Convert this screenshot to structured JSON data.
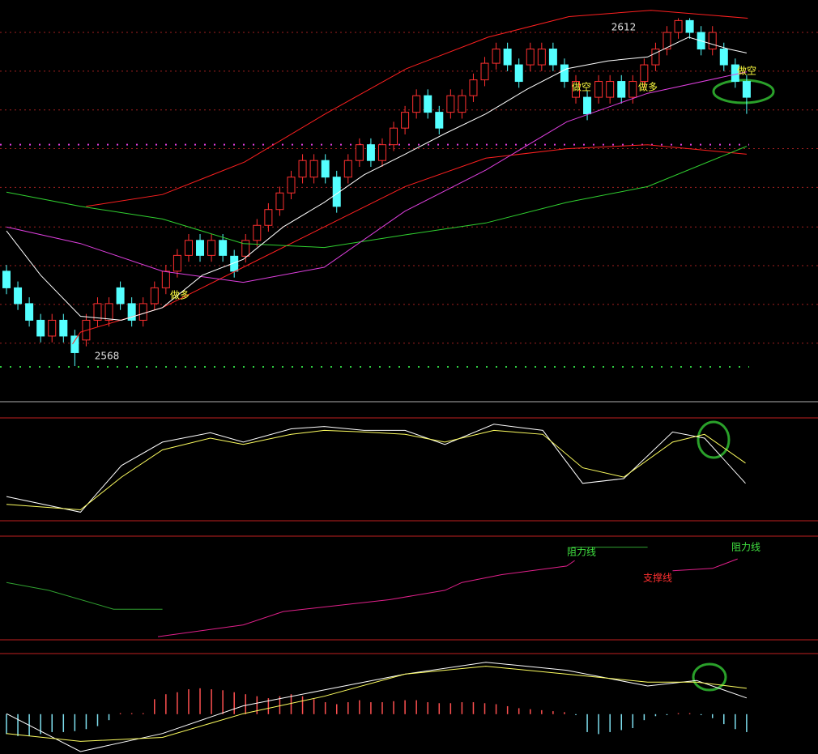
{
  "chart_data": [
    {
      "type": "candlestick",
      "open": [
        2580.0,
        2577.9,
        2575.9,
        2573.8,
        2571.8,
        2573.8,
        2571.8,
        2571.3,
        2573.8,
        2573.8,
        2577.9,
        2575.9,
        2573.8,
        2575.9,
        2577.9,
        2580.0,
        2582.0,
        2583.9,
        2582.0,
        2583.9,
        2581.9,
        2581.9,
        2583.9,
        2585.8,
        2587.8,
        2589.9,
        2591.9,
        2591.9,
        2594.0,
        2591.9,
        2591.9,
        2594.0,
        2596.0,
        2594.0,
        2596.0,
        2598.1,
        2600.1,
        2602.2,
        2600.1,
        2600.1,
        2600.1,
        2602.2,
        2604.2,
        2606.3,
        2608.1,
        2606.1,
        2606.1,
        2606.1,
        2608.1,
        2606.1,
        2602.0,
        2602.0,
        2602.0,
        2602.0,
        2604.0,
        2602.0,
        2604.0,
        2606.1,
        2608.1,
        2610.2,
        2611.7,
        2610.2,
        2608.1,
        2608.1,
        2606.1,
        2604.0
      ],
      "close": [
        2577.9,
        2575.9,
        2573.8,
        2571.8,
        2573.8,
        2571.8,
        2569.7,
        2573.8,
        2575.9,
        2575.9,
        2575.9,
        2573.8,
        2575.9,
        2577.9,
        2580.0,
        2582.0,
        2583.9,
        2582.0,
        2583.9,
        2582.0,
        2580.0,
        2583.9,
        2585.8,
        2587.8,
        2589.9,
        2591.9,
        2594.0,
        2594.0,
        2591.9,
        2588.2,
        2594.0,
        2596.0,
        2594.0,
        2596.0,
        2598.1,
        2600.1,
        2602.2,
        2600.1,
        2598.1,
        2602.2,
        2602.2,
        2604.2,
        2606.3,
        2608.1,
        2606.1,
        2604.0,
        2608.1,
        2608.1,
        2606.1,
        2604.0,
        2604.0,
        2599.9,
        2604.0,
        2604.0,
        2602.0,
        2604.0,
        2606.1,
        2608.1,
        2610.2,
        2611.7,
        2610.2,
        2608.1,
        2610.2,
        2606.1,
        2604.0,
        2602.0
      ],
      "high": [
        2580.8,
        2578.7,
        2576.7,
        2574.6,
        2574.6,
        2574.6,
        2572.6,
        2574.6,
        2576.7,
        2576.7,
        2578.7,
        2576.7,
        2576.7,
        2578.7,
        2580.8,
        2582.8,
        2584.7,
        2584.7,
        2584.7,
        2584.7,
        2582.7,
        2584.7,
        2586.6,
        2588.6,
        2590.7,
        2592.7,
        2594.8,
        2594.8,
        2594.8,
        2592.7,
        2594.8,
        2596.8,
        2596.8,
        2596.8,
        2598.9,
        2600.9,
        2603.0,
        2603.0,
        2600.9,
        2603.0,
        2603.0,
        2605.0,
        2607.1,
        2608.9,
        2608.9,
        2606.9,
        2608.9,
        2608.9,
        2608.9,
        2606.9,
        2604.8,
        2602.8,
        2604.8,
        2604.8,
        2604.8,
        2604.8,
        2606.9,
        2608.9,
        2611.0,
        2612.0,
        2612.0,
        2611.0,
        2611.0,
        2608.9,
        2606.9,
        2604.8
      ],
      "low": [
        2577.1,
        2575.1,
        2573.0,
        2571.0,
        2571.0,
        2571.0,
        2568.0,
        2570.5,
        2573.0,
        2573.0,
        2575.1,
        2573.0,
        2573.0,
        2575.1,
        2577.1,
        2579.2,
        2581.2,
        2581.2,
        2581.2,
        2581.2,
        2579.2,
        2581.1,
        2583.1,
        2585.0,
        2587.0,
        2589.1,
        2591.1,
        2591.1,
        2591.1,
        2587.4,
        2591.1,
        2593.2,
        2593.2,
        2593.2,
        2595.2,
        2597.3,
        2599.3,
        2599.3,
        2597.3,
        2599.3,
        2599.3,
        2601.4,
        2603.4,
        2605.5,
        2605.3,
        2603.2,
        2605.3,
        2605.3,
        2605.3,
        2603.2,
        2601.2,
        2599.1,
        2601.2,
        2601.2,
        2601.2,
        2601.2,
        2603.2,
        2605.3,
        2607.3,
        2609.4,
        2609.4,
        2607.3,
        2607.3,
        2605.3,
        2603.2,
        2599.9
      ],
      "up_color": "#ff3030",
      "down_color": "#54ffff",
      "ylim": [
        2563.6,
        2614.3
      ],
      "yticks": [
        2610.2,
        2605.3,
        2600.4,
        2595.5,
        2590.6,
        2585.6,
        2580.7,
        2575.8,
        2570.9
      ],
      "grid": true,
      "grid_color": "#a02020",
      "levels": [
        {
          "value": 2596.0,
          "color": "#e040e0"
        },
        {
          "value": 2567.9,
          "color": "#2ecc40"
        }
      ],
      "series": [
        {
          "color": "#ff2020",
          "x": [
            7,
            13.7,
            20.9,
            28,
            35.1,
            42.3,
            49.4,
            56.6,
            65.1
          ],
          "values": [
            2588.2,
            2589.7,
            2593.8,
            2599.9,
            2605.6,
            2609.6,
            2612.2,
            2613.0,
            2612.0
          ]
        },
        {
          "color": "#ff2020",
          "x": [
            5.8,
            6.5,
            13.7,
            20.8,
            27.9,
            35,
            42.1,
            49.2,
            56.3,
            65
          ],
          "values": [
            2570.8,
            2572.3,
            2575.4,
            2580.5,
            2585.6,
            2590.7,
            2594.3,
            2595.5,
            2596.0,
            2594.8
          ]
        },
        {
          "color": "#30d030",
          "x": [
            0,
            6.5,
            13.7,
            20.8,
            27.9,
            35,
            42.1,
            49.2,
            56.3,
            65
          ],
          "values": [
            2590.0,
            2588.2,
            2586.6,
            2583.5,
            2583.0,
            2584.6,
            2586.1,
            2588.7,
            2590.7,
            2595.8
          ]
        },
        {
          "color": "#e040e0",
          "x": [
            0,
            6.5,
            13.7,
            20.8,
            27.9,
            35,
            42.1,
            49.2,
            56.3,
            65
          ],
          "values": [
            2585.6,
            2583.5,
            2580.0,
            2578.6,
            2580.5,
            2587.6,
            2592.8,
            2598.9,
            2602.5,
            2605.2
          ]
        },
        {
          "color": "#ffffff",
          "x": [
            0,
            3,
            6.5,
            10.1,
            13.7,
            17.2,
            20.8,
            24.3,
            27.9,
            31.4,
            35,
            38.5,
            42.1,
            45.7,
            49.2,
            52.8,
            56.3,
            59.9,
            63.4,
            65
          ],
          "values": [
            2585.1,
            2579.5,
            2574.3,
            2573.8,
            2575.4,
            2579.5,
            2581.5,
            2585.6,
            2588.7,
            2592.2,
            2594.8,
            2597.4,
            2599.9,
            2603.0,
            2605.6,
            2606.6,
            2607.1,
            2609.6,
            2608.1,
            2607.6
          ]
        }
      ],
      "annotations": [
        {
          "text": "2612",
          "color": "#e0e0e0"
        },
        {
          "text": "2568",
          "color": "#e0e0e0"
        },
        {
          "text": "做多",
          "color": "#ffff40"
        },
        {
          "text": "做空",
          "color": "#ffff40"
        },
        {
          "text": "做多",
          "color": "#ffff40"
        },
        {
          "text": "做空",
          "color": "#ffff40"
        }
      ]
    },
    {
      "type": "line",
      "ylim": [
        0,
        100
      ],
      "series": [
        {
          "color": "#ffffff",
          "x": [
            0,
            6.5,
            10.1,
            13.7,
            17.9,
            20.8,
            25,
            27.9,
            31.4,
            35,
            38.5,
            42.8,
            47.1,
            50.6,
            54.2,
            58.5,
            61.3,
            64.9
          ],
          "values": [
            23.1,
            7.7,
            53.8,
            76.9,
            86.2,
            76.9,
            90,
            92.3,
            88.5,
            88.5,
            74.6,
            94.6,
            88.5,
            36.2,
            40.8,
            86.9,
            80.8,
            36.2
          ]
        },
        {
          "color": "#ffff60",
          "x": [
            0,
            6.5,
            10.1,
            13.7,
            17.9,
            20.8,
            25,
            27.9,
            31.4,
            35,
            38.5,
            42.8,
            47.1,
            50.6,
            54.2,
            58.5,
            61.3,
            64.9
          ],
          "values": [
            15.4,
            10,
            42.3,
            69.2,
            80.8,
            74.6,
            84.6,
            88.5,
            86.9,
            84.6,
            76.9,
            88.5,
            84.6,
            51.5,
            42.3,
            76.9,
            84.6,
            56.2
          ]
        }
      ]
    },
    {
      "type": "line",
      "ylim": [
        0,
        100
      ],
      "series": [
        {
          "color": "#30a030",
          "x": [
            0,
            3.7,
            9.4,
            13.7,
            20,
            49.6,
            56.3
          ],
          "values": [
            55.4,
            47.7,
            29.2,
            29.2,
            null,
            90,
            90
          ]
        },
        {
          "color": "#e0208a",
          "x": [
            13.3,
            20.8,
            24.3,
            33.6,
            38.5,
            40,
            43.5,
            49.2,
            49.9,
            54,
            58.5,
            62,
            64.2
          ],
          "values": [
            2.3,
            13.8,
            26.9,
            38.5,
            47.7,
            55.4,
            63.1,
            71.5,
            76.9,
            null,
            66.9,
            69.2,
            78.5
          ]
        }
      ],
      "annotations": [
        {
          "text": "阻力线",
          "color": "#40e040"
        },
        {
          "text": "支撑线",
          "color": "#ff3030"
        },
        {
          "text": "阻力线",
          "color": "#40e040"
        }
      ]
    },
    {
      "type": "bar",
      "ylim": [
        -40,
        60
      ],
      "up_color": "#ff5050",
      "down_color": "#7fe0f0",
      "values": [
        -20,
        -22,
        -22,
        -20,
        -18,
        -18,
        -17,
        -15,
        -12,
        -6,
        1,
        1,
        1,
        15,
        20,
        22,
        25,
        26,
        25,
        24,
        22,
        20,
        18,
        16,
        18,
        20,
        18,
        15,
        12,
        10,
        12,
        14,
        12,
        12,
        13,
        14,
        14,
        12,
        11,
        11,
        12,
        12,
        11,
        10,
        8,
        6,
        5,
        4,
        3,
        2,
        -1,
        -18,
        -20,
        -18,
        -16,
        -14,
        -6,
        -2,
        -1,
        1,
        1,
        -1,
        -4,
        -10,
        -15,
        -18
      ],
      "series": [
        {
          "color": "#ffffff",
          "x": [
            0,
            6.5,
            13.7,
            20.8,
            27.9,
            35,
            42.1,
            49.2,
            56.3,
            60.6,
            65
          ],
          "values": [
            0.5,
            -37.6,
            -19.4,
            8.4,
            24.3,
            40.2,
            52.1,
            44.1,
            28.3,
            33.8,
            16.3
          ]
        },
        {
          "color": "#ffff60",
          "x": [
            0,
            6.5,
            13.7,
            20.8,
            27.9,
            35,
            42.1,
            49.2,
            56.3,
            60.6,
            65
          ],
          "values": [
            -19.4,
            -27.3,
            -23.3,
            0.5,
            18,
            40.2,
            48.1,
            40.2,
            32.2,
            32.2,
            25.9
          ]
        }
      ]
    }
  ]
}
